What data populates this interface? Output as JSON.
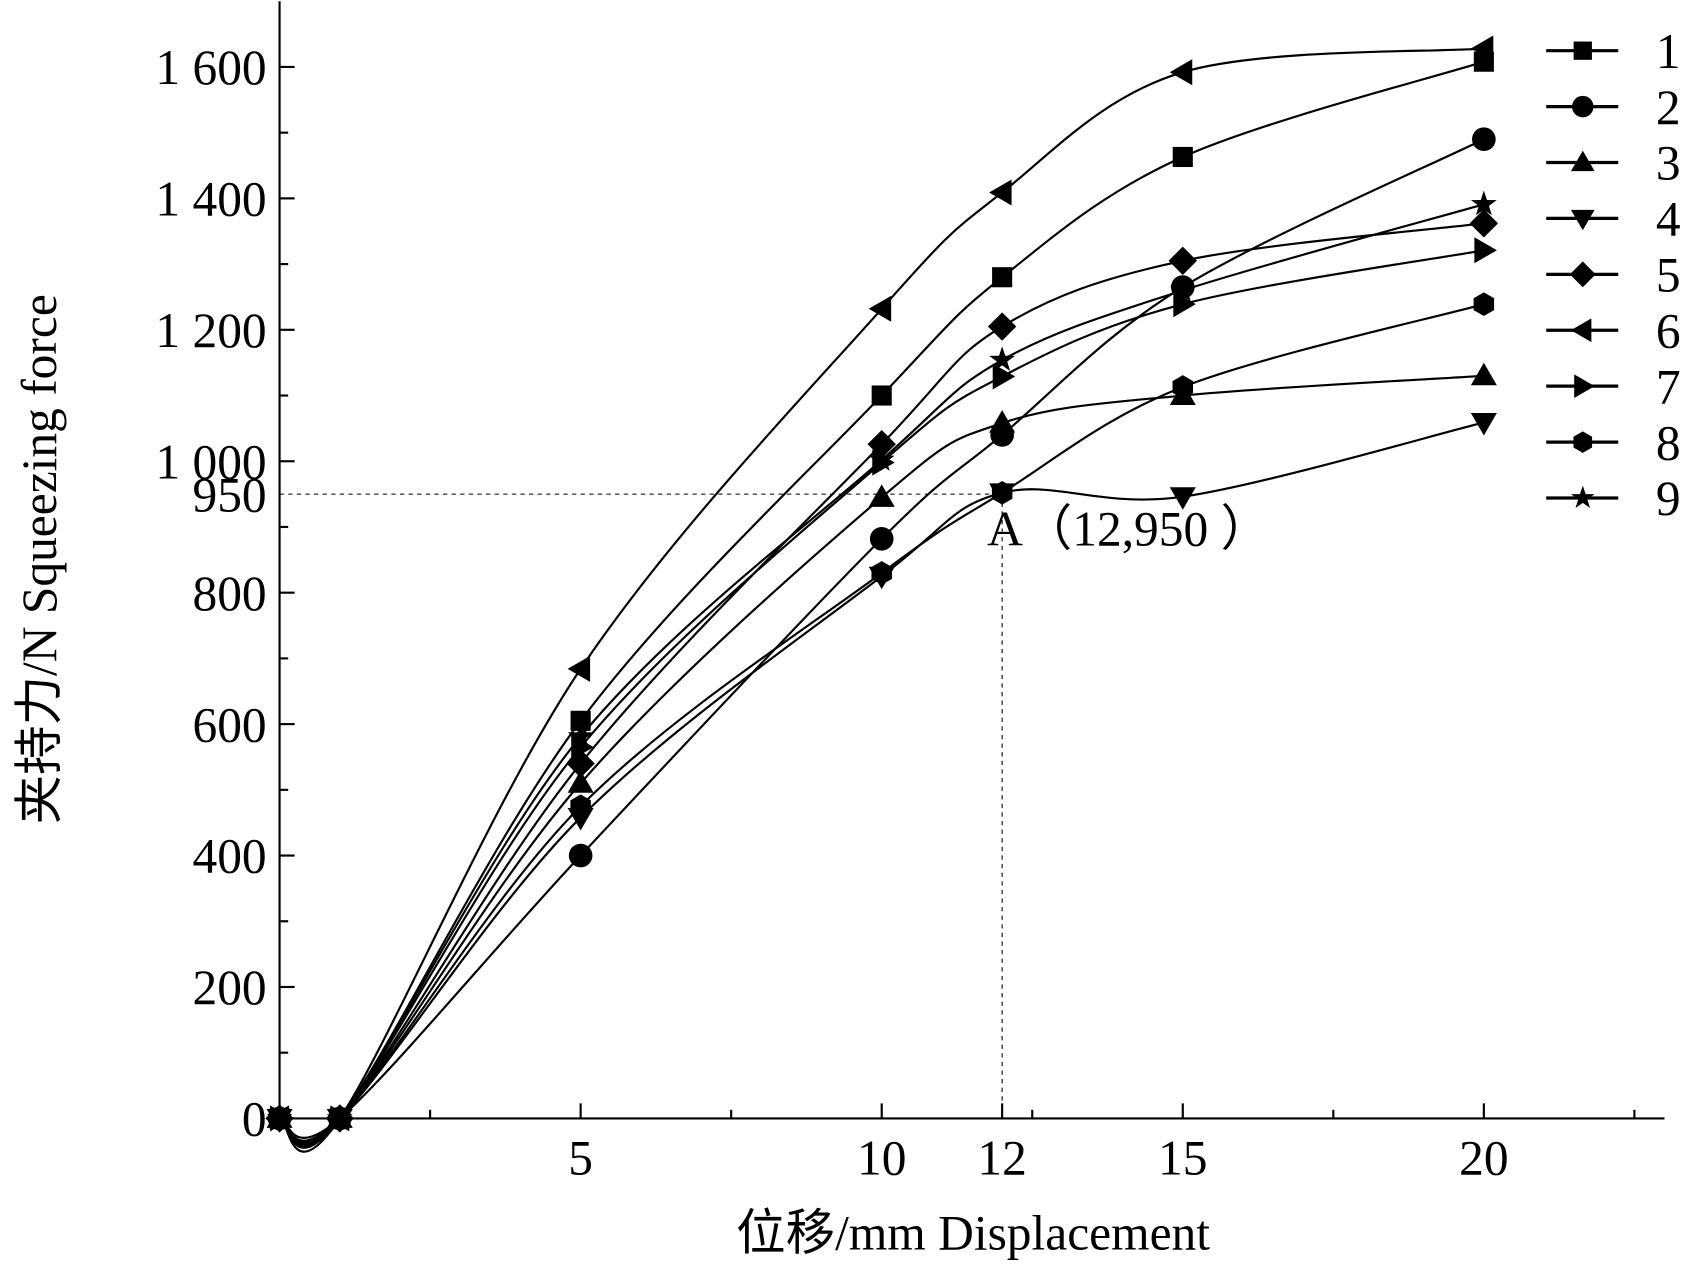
{
  "chart_data": {
    "type": "line",
    "x_label": "位移/mm Displacement",
    "y_label": "夹持力/N Squeezing force",
    "x": [
      0,
      1,
      5,
      10,
      12,
      15,
      20
    ],
    "xlim": [
      0,
      23
    ],
    "xticks": [
      5,
      10,
      12,
      15,
      20
    ],
    "xminorticks": [
      2.5,
      7.5,
      12.5,
      17.5,
      22.5
    ],
    "ylim": [
      0,
      1700
    ],
    "yticks": [
      0,
      200,
      400,
      600,
      800,
      {
        "value": 950,
        "label": "950"
      },
      {
        "value": 1000,
        "label": "1 000"
      },
      {
        "value": 1200,
        "label": "1 200"
      },
      {
        "value": 1400,
        "label": "1 400"
      },
      {
        "value": 1600,
        "label": "1 600"
      }
    ],
    "yminorticks": [
      100,
      300,
      500,
      700,
      900,
      1100,
      1300,
      1500
    ],
    "annotation": {
      "x": 12,
      "y": 950,
      "label": "A（12,950 ）"
    },
    "legend": "right",
    "series": [
      {
        "name": "1",
        "marker": "square",
        "color": "#000000",
        "values": [
          0,
          0,
          605,
          1100,
          1280,
          1463,
          1608
        ]
      },
      {
        "name": "2",
        "marker": "circle",
        "color": "#000000",
        "values": [
          0,
          0,
          400,
          882,
          1040,
          1265,
          1490
        ]
      },
      {
        "name": "3",
        "marker": "triangle-up",
        "color": "#000000",
        "values": [
          0,
          0,
          510,
          945,
          1058,
          1100,
          1130
        ]
      },
      {
        "name": "4",
        "marker": "triangle-down",
        "color": "#000000",
        "values": [
          0,
          0,
          458,
          825,
          952,
          946,
          1059
        ]
      },
      {
        "name": "5",
        "marker": "diamond",
        "color": "#000000",
        "values": [
          0,
          0,
          540,
          1026,
          1205,
          1305,
          1362
        ]
      },
      {
        "name": "6",
        "marker": "triangle-left",
        "color": "#000000",
        "values": [
          0,
          0,
          684,
          1232,
          1409,
          1592,
          1628
        ]
      },
      {
        "name": "7",
        "marker": "triangle-right",
        "color": "#000000",
        "values": [
          0,
          0,
          565,
          998,
          1129,
          1239,
          1321
        ]
      },
      {
        "name": "8",
        "marker": "hexagon",
        "color": "#000000",
        "values": [
          0,
          0,
          475,
          830,
          952,
          1113,
          1239
        ]
      },
      {
        "name": "9",
        "marker": "star",
        "color": "#000000",
        "values": [
          0,
          0,
          581,
          1002,
          1154,
          1260,
          1391
        ]
      }
    ]
  }
}
